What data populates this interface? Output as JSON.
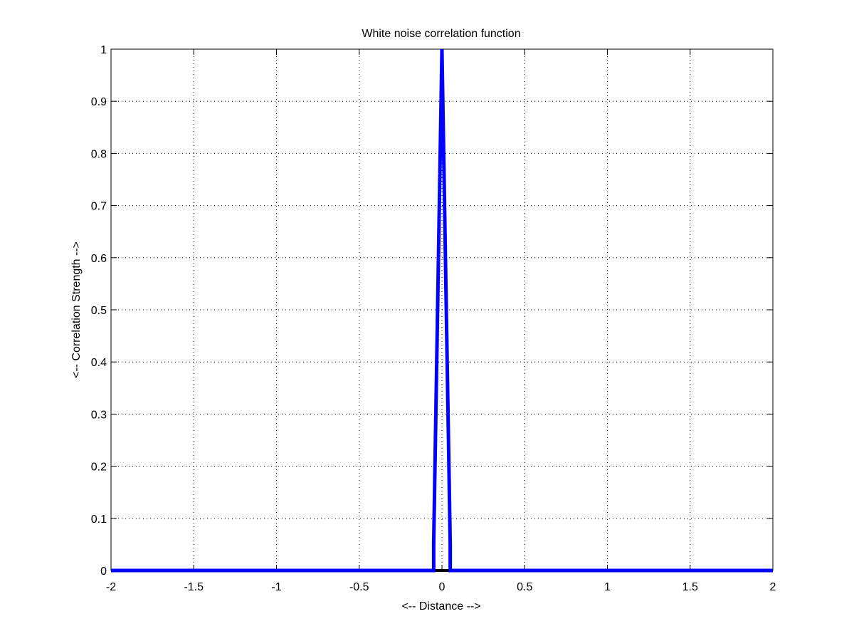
{
  "chart_data": {
    "type": "line",
    "title": "White noise correlation function",
    "xlabel": "<-- Distance -->",
    "ylabel": "<-- Correlation Strength -->",
    "xlim": [
      -2,
      2
    ],
    "ylim": [
      0,
      1
    ],
    "xticks": [
      -2,
      -1.5,
      -1,
      -0.5,
      0,
      0.5,
      1,
      1.5,
      2
    ],
    "xtick_labels": [
      "-2",
      "-1.5",
      "-1",
      "-0.5",
      "0",
      "0.5",
      "1",
      "1.5",
      "2"
    ],
    "yticks": [
      0,
      0.1,
      0.2,
      0.3,
      0.4,
      0.5,
      0.6,
      0.7,
      0.8,
      0.9,
      1
    ],
    "ytick_labels": [
      "0",
      "0.1",
      "0.2",
      "0.3",
      "0.4",
      "0.5",
      "0.6",
      "0.7",
      "0.8",
      "0.9",
      "1"
    ],
    "grid": true,
    "grid_style": "dotted",
    "series": [
      {
        "color": "#0000ff",
        "x": [
          -2,
          -0.05,
          -0.05,
          0,
          0.05,
          0.05,
          2
        ],
        "y": [
          0,
          0,
          0.05,
          1,
          0.05,
          0,
          0
        ]
      }
    ],
    "baseline": {
      "y": 0,
      "color": "#000000"
    }
  }
}
